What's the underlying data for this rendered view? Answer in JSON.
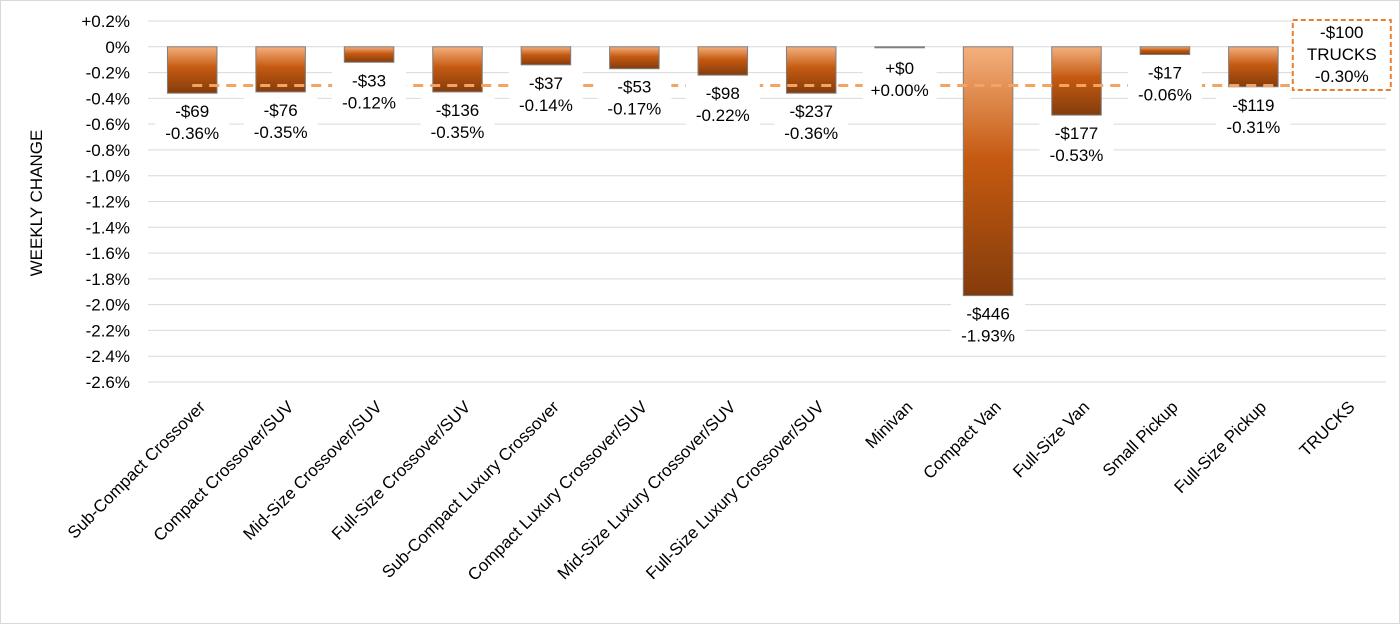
{
  "chart_data": {
    "type": "bar",
    "ylabel": "WEEKLY CHANGE",
    "ylim": [
      -2.6,
      0.2
    ],
    "ytick_step": 0.2,
    "y_ticks": [
      "+0.2%",
      "0%",
      "-0.2%",
      "-0.4%",
      "-0.6%",
      "-0.8%",
      "-1.0%",
      "-1.2%",
      "-1.4%",
      "-1.6%",
      "-1.8%",
      "-2.0%",
      "-2.2%",
      "-2.4%",
      "-2.6%"
    ],
    "grid": true,
    "categories": [
      "Sub-Compact Crossover",
      "Compact Crossover/SUV",
      "Mid-Size Crossover/SUV",
      "Full-Size Crossover/SUV",
      "Sub-Compact Luxury Crossover",
      "Compact Luxury Crossover/SUV",
      "Mid-Size Luxury Crossover/SUV",
      "Full-Size Luxury Crossover/SUV",
      "Minivan",
      "Compact Van",
      "Full-Size Van",
      "Small Pickup",
      "Full-Size Pickup",
      "TRUCKS"
    ],
    "values": [
      -0.36,
      -0.35,
      -0.12,
      -0.35,
      -0.14,
      -0.17,
      -0.22,
      -0.36,
      0.0,
      -1.93,
      -0.53,
      -0.06,
      -0.31,
      null
    ],
    "dollar_labels": [
      "-$69",
      "-$76",
      "-$33",
      "-$136",
      "-$37",
      "-$53",
      "-$98",
      "-$237",
      "+$0",
      "-$446",
      "-$177",
      "-$17",
      "-$119",
      "-$100"
    ],
    "percent_labels": [
      "-0.36%",
      "-0.35%",
      "-0.12%",
      "-0.35%",
      "-0.14%",
      "-0.17%",
      "-0.22%",
      "-0.36%",
      "+0.00%",
      "-1.93%",
      "-0.53%",
      "-0.06%",
      "-0.31%",
      "-0.30%"
    ],
    "segment_average": {
      "name": "TRUCKS",
      "value": -0.3,
      "dollar_label": "-$100",
      "percent_label": "-0.30%",
      "style": "dashed line"
    },
    "colors": {
      "bar_light": "#f4b07e",
      "bar_mid": "#c55a11",
      "bar_dark": "#843c0c",
      "bar_edge": "#7f7f7f",
      "average_line": "#f4a460",
      "average_box": "#ed7d31",
      "grid": "#d9d9d9"
    }
  }
}
